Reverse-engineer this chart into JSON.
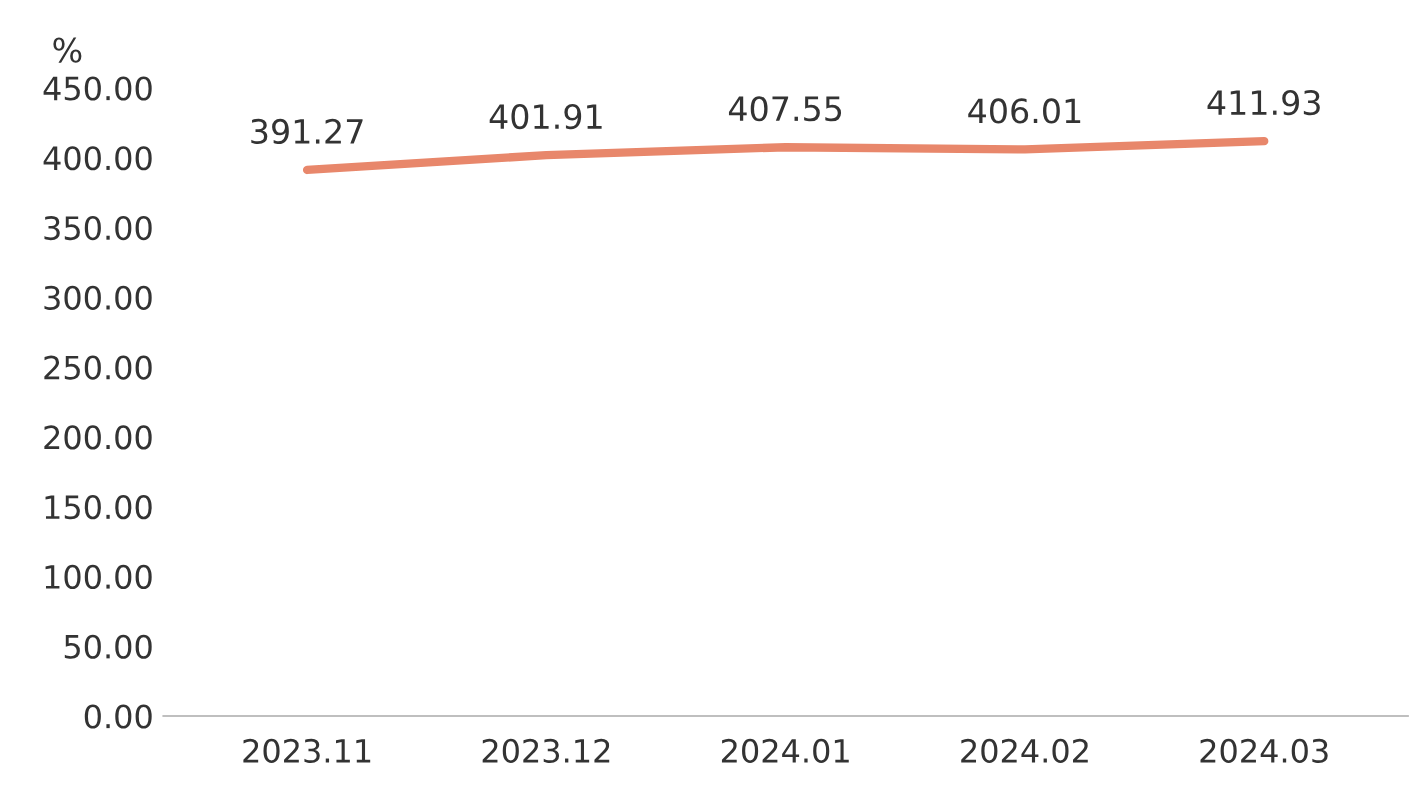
{
  "chart_data": {
    "type": "line",
    "ylabel": "%",
    "categories": [
      "2023.11",
      "2023.12",
      "2024.01",
      "2024.02",
      "2024.03"
    ],
    "series": [
      {
        "color": "#e8876b",
        "values": [
          391.27,
          401.91,
          407.55,
          406.01,
          411.93
        ]
      }
    ],
    "ylim": [
      0,
      450
    ],
    "yticks": [
      {
        "value": 0,
        "label": "0.00"
      },
      {
        "value": 50,
        "label": "50.00"
      },
      {
        "value": 100,
        "label": "100.00"
      },
      {
        "value": 150,
        "label": "150.00"
      },
      {
        "value": 200,
        "label": "200.00"
      },
      {
        "value": 250,
        "label": "250.00"
      },
      {
        "value": 300,
        "label": "300.00"
      },
      {
        "value": 350,
        "label": "350.00"
      },
      {
        "value": 400,
        "label": "400.00"
      },
      {
        "value": 450,
        "label": "450.00"
      }
    ],
    "data_labels": true,
    "grid": false,
    "legend": false,
    "marker": "none",
    "line_style": "solid"
  }
}
